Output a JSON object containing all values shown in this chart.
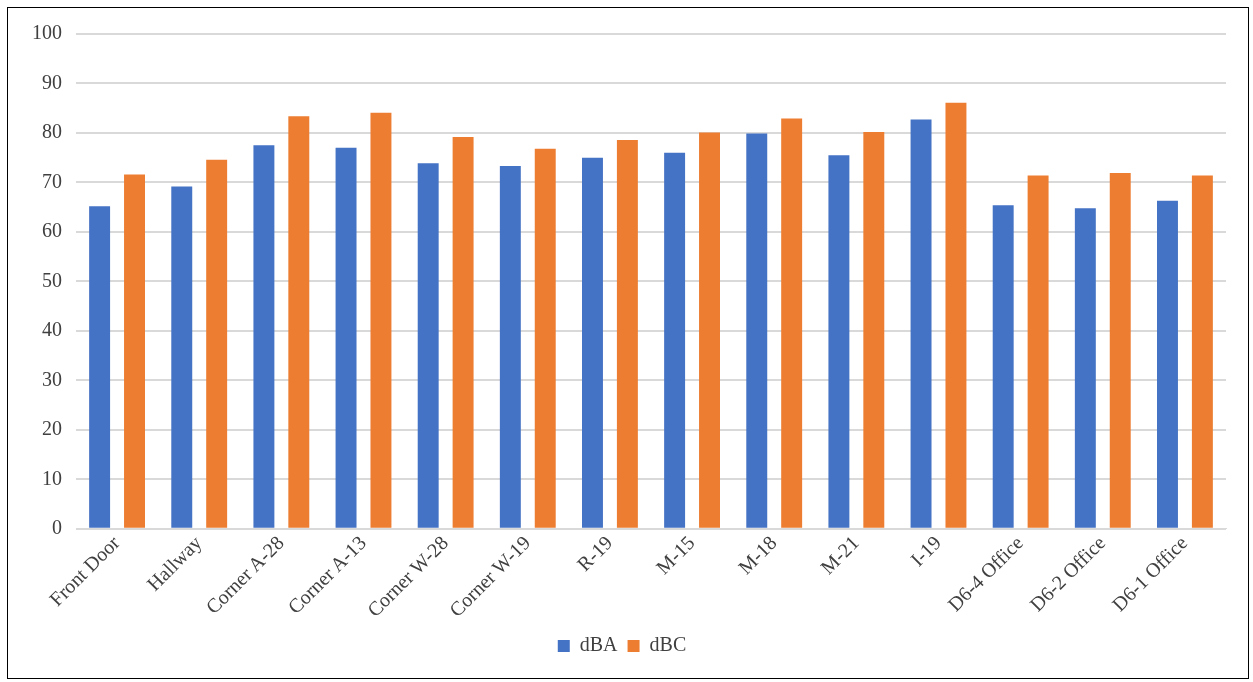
{
  "chart_data": {
    "type": "bar",
    "categories": [
      "Front Door",
      "Hallway",
      "Corner A-28",
      "Corner A-13",
      "Corner W-28",
      "Corner W-19",
      "R-19",
      "M-15",
      "M-18",
      "M-21",
      "I-19",
      "D6-4 Office",
      "D6-2 Office",
      "D6-1 Office"
    ],
    "series": [
      {
        "name": "dBA",
        "color": "#4472c4",
        "values": [
          65.2,
          69.2,
          77.5,
          77.0,
          73.9,
          73.3,
          75.0,
          76.0,
          79.9,
          75.5,
          82.7,
          65.4,
          64.8,
          66.3
        ]
      },
      {
        "name": "dBC",
        "color": "#ed7d31",
        "values": [
          71.6,
          74.6,
          83.4,
          84.1,
          79.2,
          76.8,
          78.6,
          80.1,
          82.9,
          80.2,
          86.1,
          71.4,
          71.9,
          71.4
        ]
      }
    ],
    "ylim": [
      0,
      100
    ],
    "yticks": [
      0,
      10,
      20,
      30,
      40,
      50,
      60,
      70,
      80,
      90,
      100
    ],
    "grid": "y",
    "legend": "bottom"
  }
}
